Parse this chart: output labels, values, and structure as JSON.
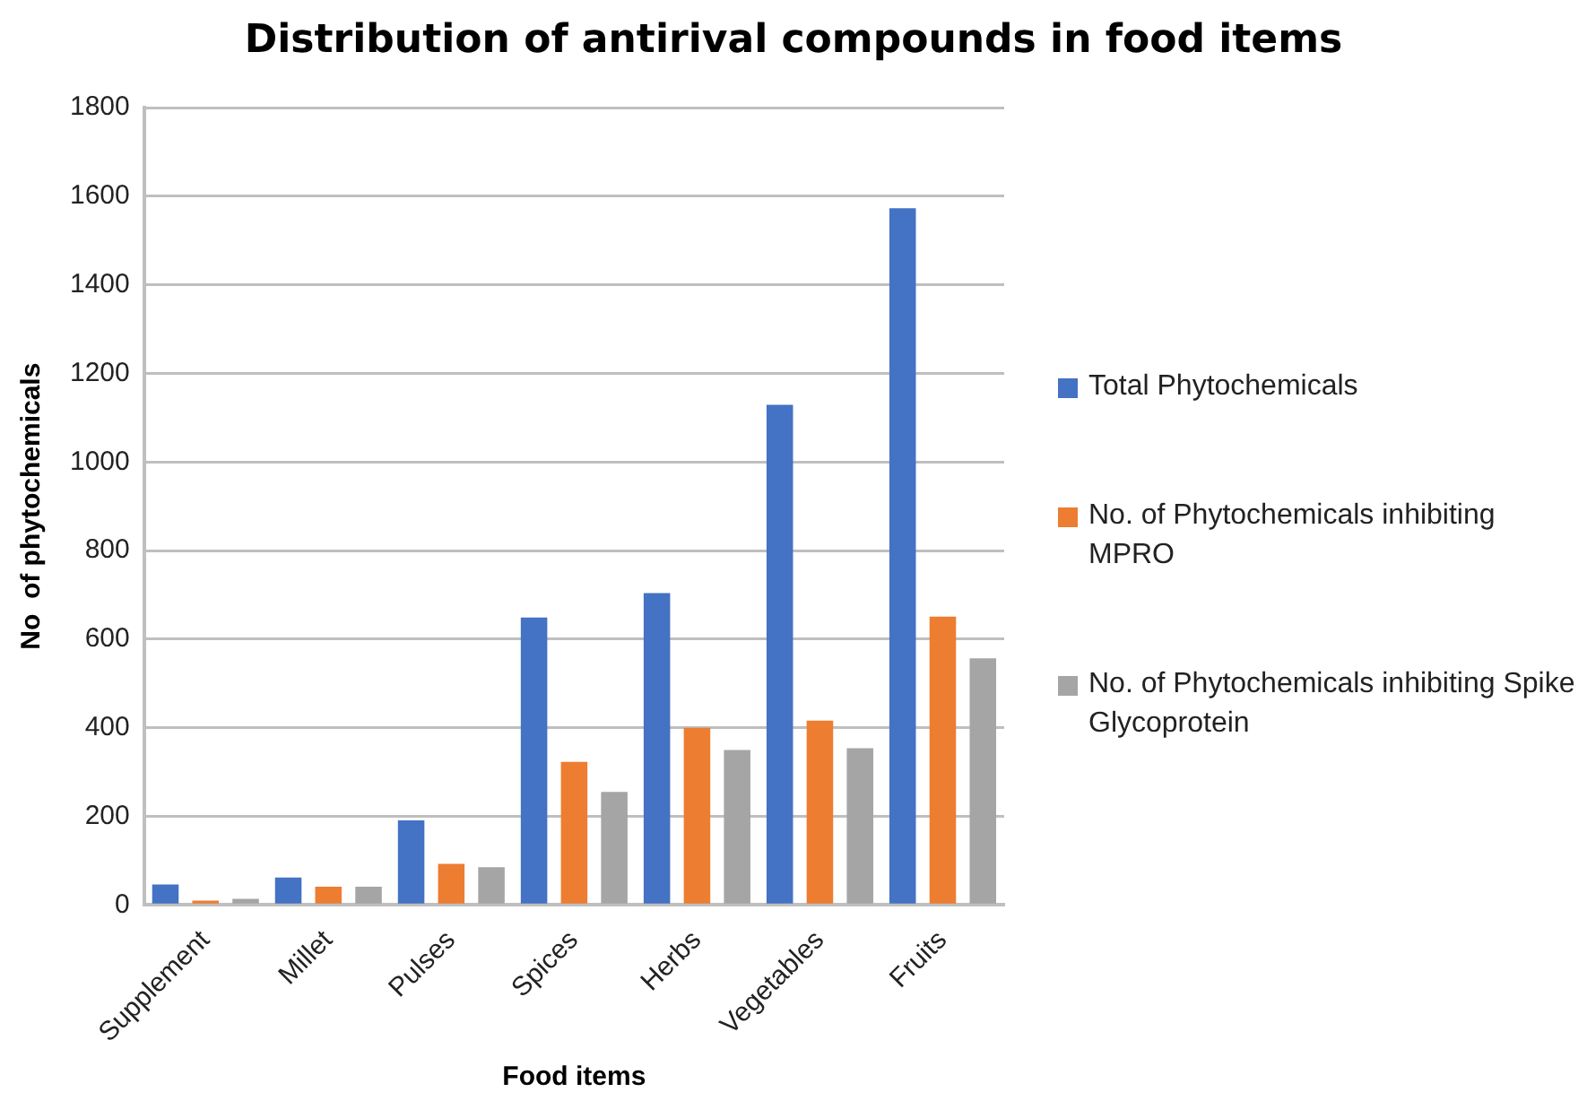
{
  "chart_data": {
    "type": "bar",
    "title": "Distribution of antirival compounds in food items",
    "xlabel": "Food items",
    "ylabel": "No  of phytochemicals",
    "categories": [
      "Supplement",
      "Millet",
      "Pulses",
      "Spices",
      "Herbs",
      "Vegetables",
      "Fruits"
    ],
    "series": [
      {
        "name": "Total Phytochemicals",
        "color": "#4472c4",
        "values": [
          46,
          62,
          191,
          649,
          704,
          1129,
          1573
        ]
      },
      {
        "name": "No. of Phytochemicals inhibiting MPRO",
        "color": "#ed7d31",
        "values": [
          10,
          41,
          93,
          323,
          400,
          416,
          651
        ]
      },
      {
        "name": "No. of Phytochemicals inhibiting Spike Glycoprotein",
        "color": "#a5a5a5",
        "values": [
          14,
          41,
          85,
          255,
          350,
          354,
          557
        ]
      }
    ],
    "ylim": [
      0,
      1800
    ],
    "yticks": [
      0,
      200,
      400,
      600,
      800,
      1000,
      1200,
      1400,
      1600,
      1800
    ],
    "grid": "y",
    "legend": "right"
  }
}
